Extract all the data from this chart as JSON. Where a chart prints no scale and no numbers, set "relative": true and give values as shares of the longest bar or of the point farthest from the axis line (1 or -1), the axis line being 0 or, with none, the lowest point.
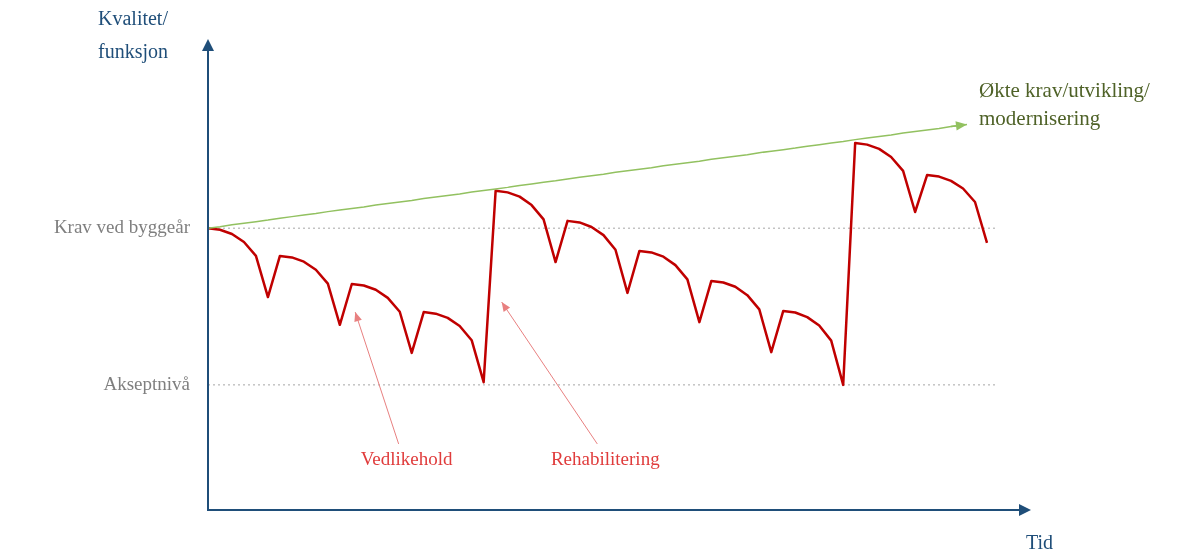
{
  "chart_data": {
    "type": "line",
    "relative": true,
    "xlabel": "Tid",
    "ylabel": "Kvalitet/funksjon",
    "legend": false,
    "marker": "none",
    "line_style": "solid",
    "categories": [
      null,
      null,
      null,
      null,
      null,
      null,
      null,
      null,
      null,
      null,
      null,
      null,
      null,
      null,
      null,
      null,
      null,
      null,
      null,
      null,
      null,
      null,
      null,
      null,
      null,
      null,
      null,
      null,
      null,
      null,
      null,
      null,
      null,
      null,
      null,
      null,
      null,
      null,
      null,
      null,
      null,
      null,
      null,
      null,
      null,
      null,
      null,
      null,
      null,
      null,
      null,
      null,
      null,
      null,
      null,
      null,
      null,
      null,
      null,
      null,
      null,
      null,
      null,
      null,
      null,
      null
    ],
    "series": [
      {
        "color": "#c00000",
        "values": [
          0.732,
          0.728,
          0.717,
          0.696,
          0.66,
          0.553,
          0.66,
          0.656,
          0.645,
          0.624,
          0.588,
          0.481,
          0.587,
          0.583,
          0.572,
          0.551,
          0.515,
          0.408,
          0.514,
          0.51,
          0.499,
          0.478,
          0.441,
          0.332,
          0.829,
          0.825,
          0.814,
          0.792,
          0.755,
          0.644,
          0.751,
          0.747,
          0.735,
          0.714,
          0.676,
          0.564,
          0.673,
          0.669,
          0.658,
          0.636,
          0.599,
          0.488,
          0.595,
          0.591,
          0.58,
          0.558,
          0.521,
          0.41,
          0.517,
          0.513,
          0.501,
          0.479,
          0.44,
          0.325,
          0.953,
          0.949,
          0.938,
          0.917,
          0.881,
          0.774,
          0.87,
          0.866,
          0.855,
          0.835,
          0.8,
          0.694
        ]
      },
      {
        "name": "Økte krav/utvikling/modernisering",
        "color": "#92c160",
        "values": [
          0.732,
          0.736,
          0.741,
          0.745,
          0.749,
          0.753,
          0.758,
          0.762,
          0.766,
          0.77,
          0.775,
          0.779,
          0.783,
          0.787,
          0.792,
          0.796,
          0.8,
          0.804,
          0.809,
          0.813,
          0.817,
          0.821,
          0.826,
          0.83,
          0.834,
          0.838,
          0.843,
          0.847,
          0.851,
          0.855,
          0.86,
          0.864,
          0.868,
          0.872,
          0.877,
          0.881,
          0.885,
          0.889,
          0.894,
          0.898,
          0.902,
          0.906,
          0.911,
          0.915,
          0.919,
          0.923,
          0.928,
          0.932,
          0.936,
          0.94,
          0.945,
          0.949,
          0.953,
          0.957,
          0.962,
          0.966,
          0.97,
          0.974,
          0.979,
          0.983,
          0.987,
          0.991,
          0.996,
          1.0,
          null,
          null
        ]
      }
    ],
    "ref_lines": [
      {
        "axis": "y",
        "value": 0.732,
        "label": "Krav ved byggeår",
        "color": "#a6a6a6",
        "line_style": "dotted"
      },
      {
        "axis": "y",
        "value": 0.325,
        "label": "Akseptnivå",
        "color": "#a6a6a6",
        "line_style": "dotted"
      }
    ],
    "annotations": [
      "Vedlikehold",
      "Rehabilitering"
    ]
  }
}
